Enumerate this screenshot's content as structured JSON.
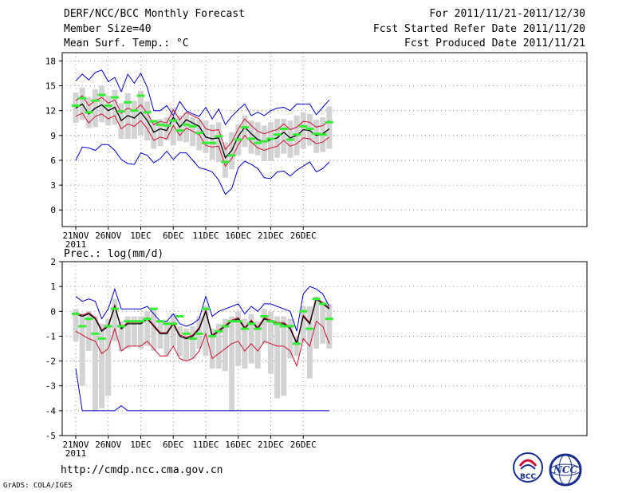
{
  "header": {
    "title": "DERF/NCC/BCC Monthly Forecast",
    "member_size": "Member Size=40",
    "variable": "Mean Surf. Temp.: °C",
    "period": "For 2011/11/21-2011/12/30",
    "started": "Fcst Started Refer Date 2011/11/20",
    "produced": "Fcst Produced Date 2011/11/21"
  },
  "footer": {
    "url": "http://cmdp.ncc.cma.gov.cn",
    "credit": "GrADS: COLA/IGES"
  },
  "logos": {
    "bcc": "BCC",
    "ncc": "NCC"
  },
  "colors": {
    "mean": "#000000",
    "spread": "#cc1133",
    "extreme": "#0000cc",
    "box": "#d3d3d3",
    "member": "#33ee33"
  },
  "chart_data": [
    {
      "type": "box",
      "title": "Mean Surf. Temp.: °C",
      "xlabel": "",
      "ylabel": "",
      "ylim": [
        -2,
        19
      ],
      "yticks": [
        0,
        3,
        6,
        9,
        12,
        15,
        18
      ],
      "xticks": [
        {
          "day": 0,
          "label": "21NOV"
        },
        {
          "day": 5,
          "label": "26NOV"
        },
        {
          "day": 10,
          "label": "1DEC"
        },
        {
          "day": 15,
          "label": "6DEC"
        },
        {
          "day": 20,
          "label": "11DEC"
        },
        {
          "day": 25,
          "label": "16DEC"
        },
        {
          "day": 30,
          "label": "21DEC"
        },
        {
          "day": 35,
          "label": "26DEC"
        }
      ],
      "year_label": "2011",
      "series": [
        {
          "name": "mean",
          "values": [
            12.3,
            12.8,
            11.6,
            12.3,
            12.7,
            12.0,
            12.4,
            10.8,
            11.4,
            11.1,
            11.8,
            10.8,
            9.4,
            9.8,
            9.6,
            11.2,
            10.0,
            10.9,
            10.5,
            10.1,
            8.8,
            8.6,
            8.7,
            6.3,
            7.2,
            8.9,
            10.0,
            9.2,
            8.5,
            8.2,
            8.5,
            8.7,
            9.4,
            8.7,
            9.0,
            9.7,
            9.6,
            9.0,
            9.2,
            9.8
          ]
        },
        {
          "name": "upper_spread",
          "values": [
            13.2,
            13.8,
            12.6,
            13.2,
            13.6,
            12.9,
            13.3,
            11.7,
            12.3,
            12.0,
            12.7,
            11.7,
            10.3,
            10.7,
            10.5,
            12.1,
            10.9,
            11.8,
            11.4,
            11.0,
            9.8,
            9.6,
            9.7,
            7.3,
            8.2,
            9.8,
            11.0,
            10.2,
            9.5,
            9.2,
            9.5,
            9.7,
            10.4,
            9.7,
            10.0,
            10.7,
            10.6,
            10.0,
            10.2,
            10.8
          ]
        },
        {
          "name": "lower_spread",
          "values": [
            11.3,
            11.7,
            10.5,
            11.3,
            11.6,
            11.0,
            11.4,
            9.8,
            10.4,
            10.1,
            10.8,
            9.8,
            8.4,
            8.8,
            8.6,
            10.2,
            9.0,
            9.9,
            9.5,
            9.1,
            7.8,
            7.6,
            7.7,
            5.3,
            6.2,
            7.9,
            9.0,
            8.2,
            7.5,
            7.2,
            7.5,
            7.7,
            8.4,
            7.7,
            8.0,
            8.7,
            8.6,
            8.0,
            8.2,
            8.8
          ]
        },
        {
          "name": "max",
          "values": [
            15.6,
            16.4,
            15.7,
            16.6,
            16.9,
            15.5,
            16.0,
            14.3,
            16.4,
            15.3,
            16.5,
            14.8,
            12.0,
            12.0,
            12.6,
            11.4,
            13.1,
            12.0,
            11.6,
            11.3,
            12.4,
            11.0,
            12.2,
            10.3,
            11.3,
            12.1,
            12.8,
            11.4,
            11.8,
            11.4,
            12.0,
            12.3,
            12.4,
            12.0,
            12.8,
            12.8,
            12.8,
            11.5,
            12.4,
            13.3
          ]
        },
        {
          "name": "min",
          "values": [
            6.0,
            7.6,
            7.5,
            7.2,
            7.9,
            7.9,
            7.2,
            6.1,
            5.6,
            5.5,
            6.9,
            6.6,
            5.7,
            6.2,
            7.1,
            6.1,
            6.9,
            6.9,
            6.0,
            5.1,
            4.9,
            4.6,
            3.6,
            1.9,
            2.6,
            5.1,
            5.9,
            5.5,
            5.0,
            3.9,
            3.8,
            4.6,
            4.7,
            4.1,
            4.8,
            5.3,
            5.8,
            4.6,
            5.0,
            5.8
          ]
        },
        {
          "name": "box_high",
          "values": [
            14.2,
            14.8,
            13.6,
            14.6,
            15.0,
            13.8,
            14.5,
            12.9,
            14.1,
            13.2,
            14.4,
            13.1,
            10.9,
            11.0,
            11.2,
            12.4,
            11.4,
            11.8,
            11.2,
            10.9,
            10.8,
            10.3,
            10.6,
            8.2,
            9.4,
            10.3,
            11.4,
            10.8,
            10.6,
            10.2,
            10.6,
            11.0,
            11.0,
            10.8,
            11.4,
            11.8,
            11.6,
            10.9,
            11.2,
            12.5
          ]
        },
        {
          "name": "box_low",
          "values": [
            10.5,
            10.9,
            9.9,
            10.0,
            10.6,
            10.2,
            10.3,
            8.6,
            8.6,
            8.6,
            9.0,
            8.4,
            7.4,
            7.7,
            8.4,
            7.8,
            8.3,
            8.2,
            7.7,
            7.2,
            6.9,
            6.1,
            5.8,
            3.9,
            4.9,
            6.6,
            7.6,
            6.8,
            6.6,
            5.9,
            5.9,
            6.3,
            6.8,
            6.3,
            6.6,
            7.4,
            7.8,
            6.9,
            7.0,
            7.4
          ]
        },
        {
          "name": "member",
          "values": [
            12.6,
            13.5,
            11.8,
            13.2,
            13.9,
            12.6,
            13.6,
            11.9,
            13.0,
            12.0,
            13.8,
            11.8,
            10.7,
            10.3,
            10.2,
            10.8,
            9.6,
            10.3,
            10.1,
            9.3,
            8.1,
            8.1,
            8.9,
            5.8,
            6.6,
            8.5,
            10.0,
            8.6,
            8.1,
            8.3,
            8.6,
            9.1,
            9.8,
            8.5,
            9.1,
            10.1,
            9.8,
            9.2,
            9.1,
            10.6
          ]
        }
      ]
    },
    {
      "type": "box",
      "title": "Prec.: log(mm/d)",
      "xlabel": "",
      "ylabel": "",
      "ylim": [
        -5,
        2
      ],
      "yticks": [
        -5,
        -4,
        -3,
        -2,
        -1,
        0,
        1,
        2
      ],
      "xticks": [
        {
          "day": 0,
          "label": "21NOV"
        },
        {
          "day": 5,
          "label": "26NOV"
        },
        {
          "day": 10,
          "label": "1DEC"
        },
        {
          "day": 15,
          "label": "6DEC"
        },
        {
          "day": 20,
          "label": "11DEC"
        },
        {
          "day": 25,
          "label": "16DEC"
        },
        {
          "day": 30,
          "label": "21DEC"
        },
        {
          "day": 35,
          "label": "26DEC"
        }
      ],
      "year_label": "2011",
      "series": [
        {
          "name": "mean",
          "values": [
            -0.1,
            -0.2,
            -0.1,
            -0.3,
            -0.8,
            -0.6,
            0.2,
            -0.7,
            -0.5,
            -0.5,
            -0.5,
            -0.3,
            -0.6,
            -0.9,
            -0.9,
            -0.5,
            -1.0,
            -1.1,
            -1.0,
            -0.7,
            0.0,
            -1.0,
            -0.8,
            -0.6,
            -0.4,
            -0.3,
            -0.7,
            -0.4,
            -0.7,
            -0.3,
            -0.4,
            -0.5,
            -0.5,
            -0.7,
            -1.3,
            -0.2,
            -0.5,
            0.5,
            0.3,
            0.1
          ]
        },
        {
          "name": "upper_spread",
          "values": [
            -0.05,
            -0.15,
            -0.05,
            -0.25,
            -0.75,
            -0.55,
            0.25,
            -0.65,
            -0.45,
            -0.45,
            -0.45,
            -0.25,
            -0.55,
            -0.85,
            -0.85,
            -0.45,
            -0.95,
            -1.05,
            -0.95,
            -0.65,
            0.05,
            -0.95,
            -0.75,
            -0.55,
            -0.35,
            -0.25,
            -0.65,
            -0.35,
            -0.65,
            -0.25,
            -0.35,
            -0.45,
            -0.45,
            -0.65,
            -1.25,
            -0.15,
            -0.45,
            0.55,
            0.35,
            0.15
          ]
        },
        {
          "name": "lower_spread",
          "values": [
            -0.8,
            -0.95,
            -1.1,
            -1.2,
            -1.7,
            -1.5,
            -0.7,
            -1.6,
            -1.4,
            -1.4,
            -1.4,
            -1.2,
            -1.5,
            -1.8,
            -1.8,
            -1.4,
            -1.9,
            -2.0,
            -1.9,
            -1.6,
            -0.9,
            -1.9,
            -1.7,
            -1.5,
            -1.3,
            -1.2,
            -1.6,
            -1.3,
            -1.6,
            -1.2,
            -1.3,
            -1.4,
            -1.4,
            -1.6,
            -2.2,
            -1.1,
            -1.4,
            -0.4,
            -0.6,
            -1.3
          ]
        },
        {
          "name": "max",
          "values": [
            0.6,
            0.4,
            0.5,
            0.4,
            -0.3,
            0.1,
            0.9,
            0.1,
            0.1,
            0.1,
            0.1,
            0.2,
            -0.1,
            -0.4,
            -0.4,
            -0.1,
            -0.5,
            -0.6,
            -0.5,
            -0.3,
            0.6,
            -0.2,
            0.0,
            0.1,
            0.2,
            0.3,
            -0.1,
            0.2,
            0.0,
            0.3,
            0.3,
            0.2,
            0.1,
            0.0,
            -0.8,
            0.7,
            1.0,
            0.9,
            0.7,
            0.2
          ]
        },
        {
          "name": "min",
          "values": [
            -2.3,
            -4.0,
            -4.0,
            -4.0,
            -4.0,
            -4.0,
            -4.0,
            -3.8,
            -4.0,
            -4.0,
            -4.0,
            -4.0,
            -4.0,
            -4.0,
            -4.0,
            -4.0,
            -4.0,
            -4.0,
            -4.0,
            -4.0,
            -4.0,
            -4.0,
            -4.0,
            -4.0,
            -4.0,
            -4.0,
            -4.0,
            -4.0,
            -4.0,
            -4.0,
            -4.0,
            -4.0,
            -4.0,
            -4.0,
            -4.0,
            -4.0,
            -4.0,
            -4.0,
            -4.0,
            -4.0
          ]
        },
        {
          "name": "box_high",
          "values": [
            0.1,
            -0.1,
            0.0,
            -0.2,
            -0.5,
            -0.3,
            0.5,
            -0.4,
            -0.2,
            -0.2,
            -0.2,
            0.0,
            0.1,
            -0.4,
            -0.4,
            -0.1,
            -0.6,
            -0.7,
            -0.6,
            -0.2,
            0.2,
            -0.7,
            -0.5,
            -0.3,
            -0.2,
            0.0,
            -0.3,
            -0.1,
            -0.4,
            0.1,
            0.0,
            -0.2,
            -0.2,
            -0.3,
            -1.0,
            0.2,
            0.2,
            0.6,
            0.4,
            0.3
          ]
        },
        {
          "name": "box_low",
          "values": [
            -1.2,
            -3.0,
            -1.6,
            -4.0,
            -3.9,
            -3.4,
            -1.2,
            -1.6,
            -1.5,
            -1.4,
            -1.5,
            -1.4,
            -1.6,
            -1.5,
            -1.8,
            -1.4,
            -1.8,
            -2.0,
            -1.9,
            -1.5,
            -1.8,
            -2.3,
            -2.3,
            -2.4,
            -4.0,
            -2.2,
            -2.3,
            -2.1,
            -2.3,
            -1.3,
            -2.5,
            -3.5,
            -3.4,
            -1.9,
            -1.8,
            -1.2,
            -2.7,
            -1.5,
            -1.3,
            -1.5
          ]
        },
        {
          "name": "member",
          "values": [
            -0.1,
            -0.6,
            -0.3,
            -0.9,
            -1.1,
            -0.6,
            0.1,
            -0.6,
            -0.4,
            -0.4,
            -0.4,
            -0.3,
            0.1,
            -0.4,
            -0.5,
            -0.5,
            -0.2,
            -0.9,
            -1.1,
            -0.9,
            0.1,
            -1.0,
            -0.8,
            -0.6,
            -0.4,
            -0.4,
            -0.7,
            -0.5,
            -0.7,
            -0.2,
            -0.4,
            -0.5,
            -0.6,
            -0.6,
            -1.3,
            0.0,
            -0.7,
            0.5,
            0.3,
            -0.3
          ]
        }
      ]
    }
  ]
}
